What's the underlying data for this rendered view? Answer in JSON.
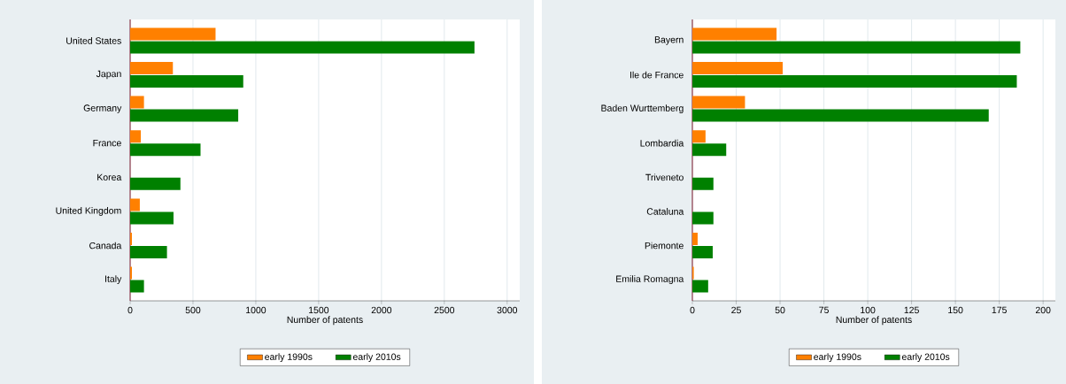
{
  "chart_data": [
    {
      "type": "bar",
      "orientation": "horizontal",
      "categories": [
        "United States",
        "Japan",
        "Germany",
        "France",
        "Korea",
        "United Kingdom",
        "Canada",
        "Italy"
      ],
      "series": [
        {
          "name": "early 1990s",
          "color": "#ff8000",
          "values": [
            680,
            340,
            110,
            85,
            null,
            77,
            14,
            14
          ]
        },
        {
          "name": "early 2010s",
          "color": "#008000",
          "values": [
            2740,
            900,
            860,
            560,
            400,
            345,
            293,
            110
          ]
        }
      ],
      "xlabel": "Number of patents",
      "xlim": [
        0,
        3100
      ],
      "xticks": [
        0,
        500,
        1000,
        1500,
        2000,
        2500,
        3000
      ],
      "grid": "x",
      "legend": "bottom"
    },
    {
      "type": "bar",
      "orientation": "horizontal",
      "categories": [
        "Bayern",
        "Ile de France",
        "Baden Wurttemberg",
        "Lombardia",
        "Triveneto",
        "Cataluna",
        "Piemonte",
        "Emilia Romagna"
      ],
      "series": [
        {
          "name": "early 1990s",
          "color": "#ff8000",
          "values": [
            48,
            51.5,
            30,
            7.5,
            null,
            0,
            3,
            0.8
          ]
        },
        {
          "name": "early 2010s",
          "color": "#008000",
          "values": [
            187,
            185,
            169,
            19.3,
            12,
            12,
            11.6,
            9
          ]
        }
      ],
      "xlabel": "Number of patents",
      "xlim": [
        0,
        207
      ],
      "xticks": [
        0,
        25,
        50,
        75,
        100,
        125,
        150,
        175,
        200
      ],
      "grid": "x",
      "legend": "bottom"
    }
  ]
}
